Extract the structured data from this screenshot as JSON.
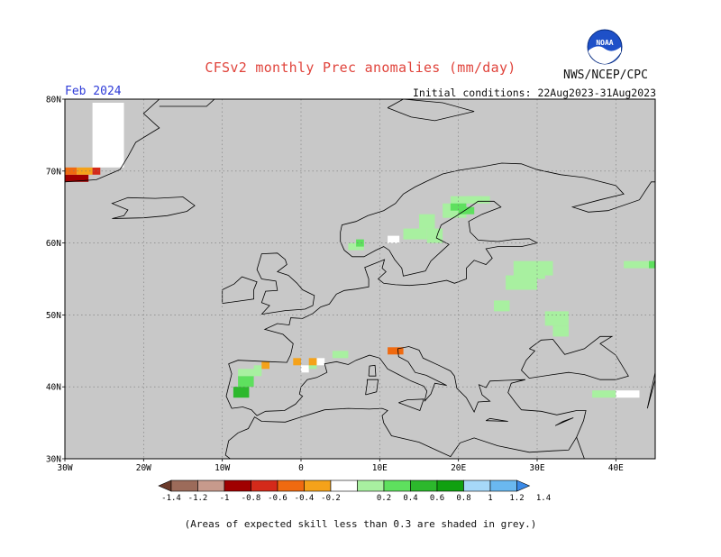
{
  "header": {
    "title": "CFSv2 monthly Prec anomalies (mm/day)",
    "agency": "NWS/NCEP/CPC",
    "logo_text": "NOAA",
    "month": "Feb 2024",
    "initial_conditions": "Initial conditions: 22Aug2023-31Aug2023"
  },
  "map": {
    "projection": "lat-lon",
    "lon_range": [
      -30,
      45
    ],
    "lat_range": [
      30,
      80
    ],
    "lat_tick_labels": [
      "30N",
      "40N",
      "50N",
      "60N",
      "70N",
      "80N"
    ],
    "lon_tick_labels": [
      "30W",
      "20W",
      "10W",
      "0",
      "10E",
      "20E",
      "30E",
      "40E"
    ],
    "gridlines": true,
    "background_color": "#c8c8c8",
    "coastline_color": "#000000"
  },
  "colorbar": {
    "tick_labels": [
      "-1.4",
      "-1.2",
      "-1",
      "-0.8",
      "-0.6",
      "-0.4",
      "-0.2",
      "0.2",
      "0.4",
      "0.6",
      "0.8",
      "1",
      "1.2",
      "1.4"
    ],
    "colors": [
      "#6b3a2a",
      "#9c6b5a",
      "#c79a8c",
      "#a00000",
      "#d42a1a",
      "#f06a10",
      "#f5a21a",
      "#ffffff",
      "#a8f0a0",
      "#5ee05e",
      "#2cb82c",
      "#10a010",
      "#a6d8f8",
      "#6ab8f0",
      "#3a8ae8"
    ]
  },
  "footer": {
    "note": "(Areas of expected skill less than 0.3 are shaded in grey.)"
  }
}
